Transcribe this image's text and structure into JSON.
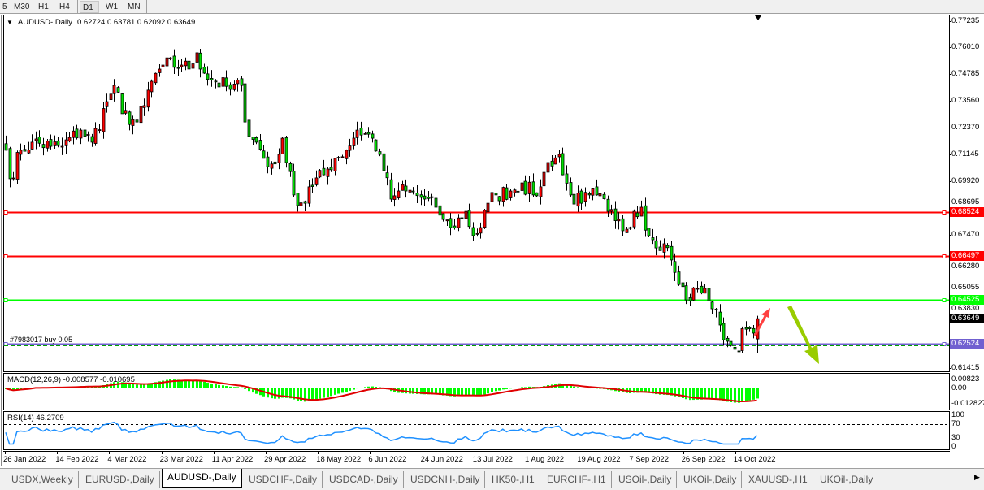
{
  "toolbar": {
    "timeframes": [
      "5",
      "M30",
      "H1",
      "H4",
      "D1",
      "W1",
      "MN"
    ],
    "active": "D1"
  },
  "chart": {
    "symbol_label": "AUDUSD-,Daily",
    "ohlc": "0.62724 0.63781 0.62092 0.63649",
    "last_candle": {
      "open": 0.62724,
      "high": 0.63781,
      "low": 0.62092,
      "close": 0.63649
    },
    "price_ticks": [
      "0.77235",
      "0.76010",
      "0.74785",
      "0.73560",
      "0.72370",
      "0.71145",
      "0.69920",
      "0.68695",
      "0.67470",
      "0.66280",
      "0.65055",
      "0.63830",
      "0.61415"
    ],
    "levels": [
      {
        "price": 0.68524,
        "label": "0.68524",
        "color": "#ff0000"
      },
      {
        "price": 0.66497,
        "label": "0.66497",
        "color": "#ff0000"
      },
      {
        "price": 0.64525,
        "label": "0.64525",
        "color": "#00ff00"
      },
      {
        "price": 0.63649,
        "label": "0.63649",
        "color": "#000000"
      },
      {
        "price": 0.62524,
        "label": "0.62524",
        "color": "#7060d0"
      }
    ],
    "order_label": "#7983017 buy 0.05",
    "colors": {
      "bull": "#ff0000",
      "bear": "#00e000",
      "arrow_up": "#ff4040",
      "arrow_down": "#99cc00"
    },
    "close_path": [
      [
        0,
        0.7134
      ],
      [
        1,
        0.7004
      ],
      [
        4,
        0.7134
      ],
      [
        7,
        0.7171
      ],
      [
        12,
        0.7152
      ],
      [
        15,
        0.7152
      ],
      [
        20,
        0.7226
      ],
      [
        23,
        0.7171
      ],
      [
        27,
        0.7356
      ],
      [
        29,
        0.743
      ],
      [
        31,
        0.7301
      ],
      [
        35,
        0.7263
      ],
      [
        37,
        0.7338
      ],
      [
        39,
        0.7449
      ],
      [
        42,
        0.7523
      ],
      [
        47,
        0.7523
      ],
      [
        49,
        0.7505
      ],
      [
        51,
        0.7579
      ],
      [
        53,
        0.7486
      ],
      [
        56,
        0.7449
      ],
      [
        60,
        0.7412
      ],
      [
        63,
        0.743
      ],
      [
        64,
        0.7263
      ],
      [
        67,
        0.7171
      ],
      [
        70,
        0.7059
      ],
      [
        73,
        0.7115
      ],
      [
        74,
        0.7189
      ],
      [
        75,
        0.7078
      ],
      [
        77,
        0.693
      ],
      [
        80,
        0.6892
      ],
      [
        81,
        0.6967
      ],
      [
        85,
        0.7022
      ],
      [
        88,
        0.7097
      ],
      [
        91,
        0.7134
      ],
      [
        94,
        0.7226
      ],
      [
        98,
        0.7189
      ],
      [
        100,
        0.7115
      ],
      [
        101,
        0.7041
      ],
      [
        103,
        0.6911
      ],
      [
        105,
        0.6948
      ],
      [
        107,
        0.6948
      ],
      [
        112,
        0.6911
      ],
      [
        115,
        0.6874
      ],
      [
        117,
        0.6818
      ],
      [
        119,
        0.6781
      ],
      [
        123,
        0.6855
      ],
      [
        125,
        0.6744
      ],
      [
        127,
        0.6781
      ],
      [
        129,
        0.6892
      ],
      [
        131,
        0.693
      ],
      [
        135,
        0.6948
      ],
      [
        138,
        0.6985
      ],
      [
        141,
        0.693
      ],
      [
        143,
        0.6967
      ],
      [
        145,
        0.7078
      ],
      [
        148,
        0.7115
      ],
      [
        149,
        0.7022
      ],
      [
        151,
        0.693
      ],
      [
        154,
        0.6892
      ],
      [
        156,
        0.693
      ],
      [
        158,
        0.693
      ],
      [
        161,
        0.6855
      ],
      [
        164,
        0.6818
      ],
      [
        167,
        0.6781
      ],
      [
        168,
        0.6855
      ],
      [
        170,
        0.6874
      ],
      [
        172,
        0.6744
      ],
      [
        174,
        0.6688
      ],
      [
        176,
        0.6707
      ],
      [
        178,
        0.6633
      ],
      [
        180,
        0.6521
      ],
      [
        183,
        0.6447
      ],
      [
        185,
        0.6503
      ],
      [
        187,
        0.6503
      ],
      [
        189,
        0.641
      ],
      [
        191,
        0.6336
      ],
      [
        193,
        0.6262
      ],
      [
        195,
        0.6225
      ],
      [
        198,
        0.6317
      ],
      [
        200,
        0.6299
      ],
      [
        201,
        0.63649
      ]
    ]
  },
  "macd": {
    "label": "MACD(12,26,9) -0.008577 -0.010695",
    "ticks": [
      "0.00823",
      "0.00",
      "-0.012827"
    ]
  },
  "rsi": {
    "label": "RSI(14) 46.2709",
    "ticks": [
      "100",
      "70",
      "30",
      "0"
    ]
  },
  "dates": [
    "26 Jan 2022",
    "14 Feb 2022",
    "4 Mar 2022",
    "23 Mar 2022",
    "11 Apr 2022",
    "29 Apr 2022",
    "18 May 2022",
    "6 Jun 2022",
    "24 Jun 2022",
    "13 Jul 2022",
    "1 Aug 2022",
    "19 Aug 2022",
    "7 Sep 2022",
    "26 Sep 2022",
    "14 Oct 2022"
  ],
  "tabs": [
    "USDX,Weekly",
    "EURUSD-,Daily",
    "AUDUSD-,Daily",
    "USDCHF-,Daily",
    "USDCAD-,Daily",
    "USDCNH-,Daily",
    "HK50-,H1",
    "EURCHF-,H1",
    "USOil-,Daily",
    "UKOil-,Daily",
    "XAUUSD-,H1",
    "UKOil-,Daily"
  ],
  "active_tab": "AUDUSD-,Daily"
}
